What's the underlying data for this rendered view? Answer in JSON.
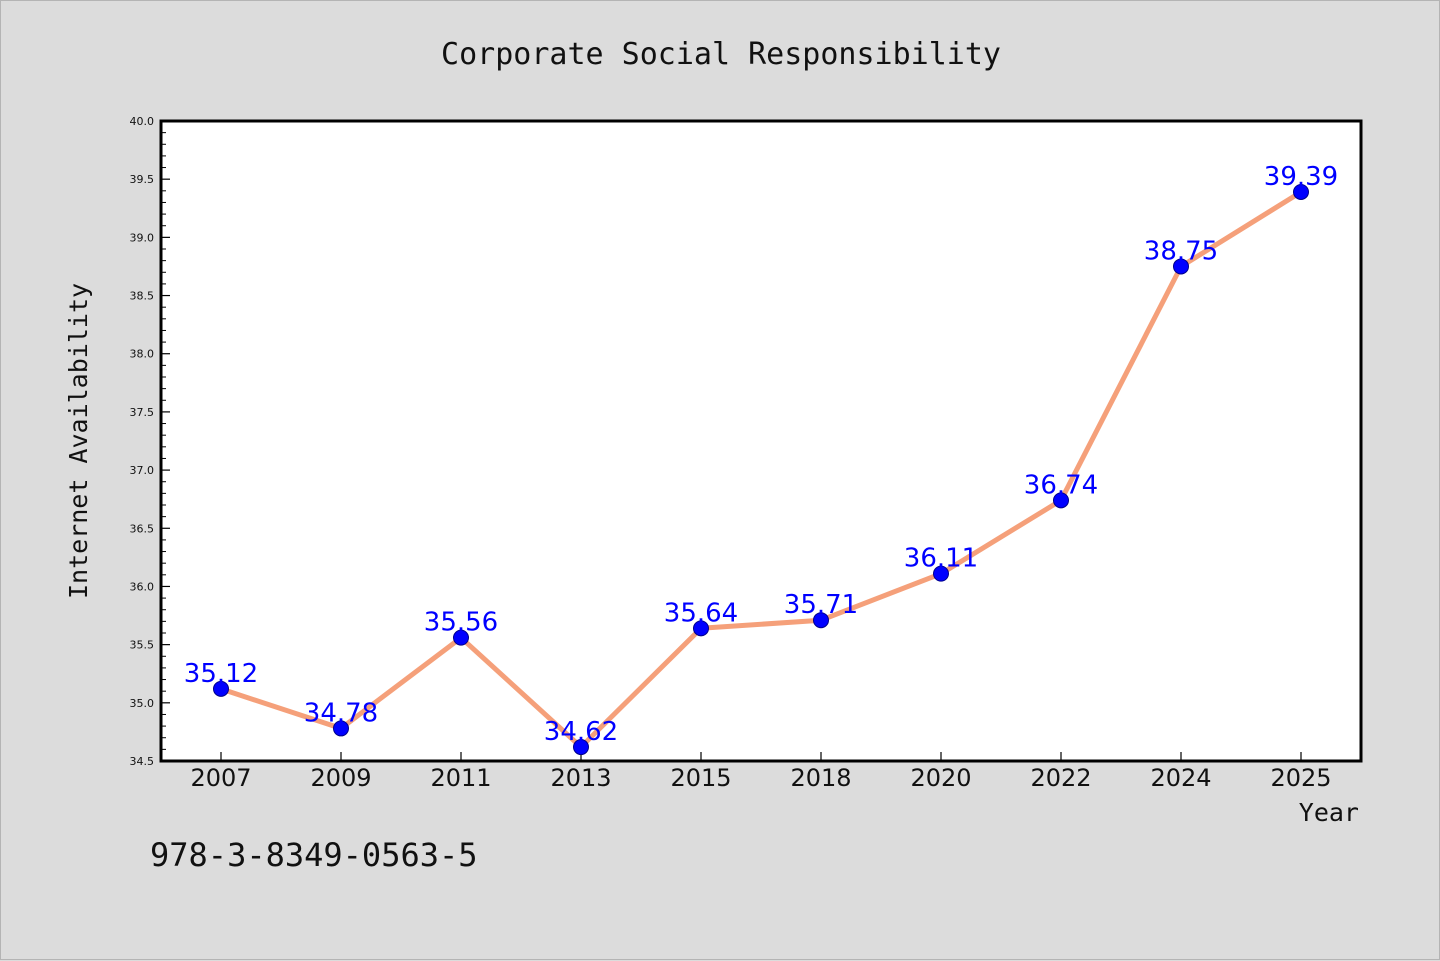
{
  "colors": {
    "background": "#dcdcdc",
    "plot_background": "#ffffff",
    "line": "#f5a07a",
    "marker": "#0000ff",
    "data_label": "#0000ff",
    "axis": "#000000"
  },
  "footer": {
    "isbn": "978-3-8349-0563-5"
  },
  "chart_data": {
    "type": "line",
    "title": "Corporate Social Responsibility",
    "xlabel": "Year",
    "ylabel": "Internet Availability",
    "categories": [
      "2007",
      "2009",
      "2011",
      "2013",
      "2015",
      "2018",
      "2020",
      "2022",
      "2024",
      "2025"
    ],
    "series": [
      {
        "values": [
          35.12,
          34.78,
          35.56,
          34.62,
          35.64,
          35.71,
          36.11,
          36.74,
          38.75,
          39.39
        ],
        "labels": [
          "35.12",
          "34.78",
          "35.56",
          "34.62",
          "35.64",
          "35.71",
          "36.11",
          "36.74",
          "38.75",
          "39.39"
        ],
        "marker": "circle"
      }
    ],
    "ylim": [
      34.5,
      40.0
    ],
    "yticks": [
      "34.5",
      "35.0",
      "35.5",
      "36.0",
      "36.5",
      "37.0",
      "37.5",
      "38.0",
      "38.5",
      "39.0",
      "39.5",
      "40.0"
    ],
    "grid": false,
    "legend": "none"
  }
}
